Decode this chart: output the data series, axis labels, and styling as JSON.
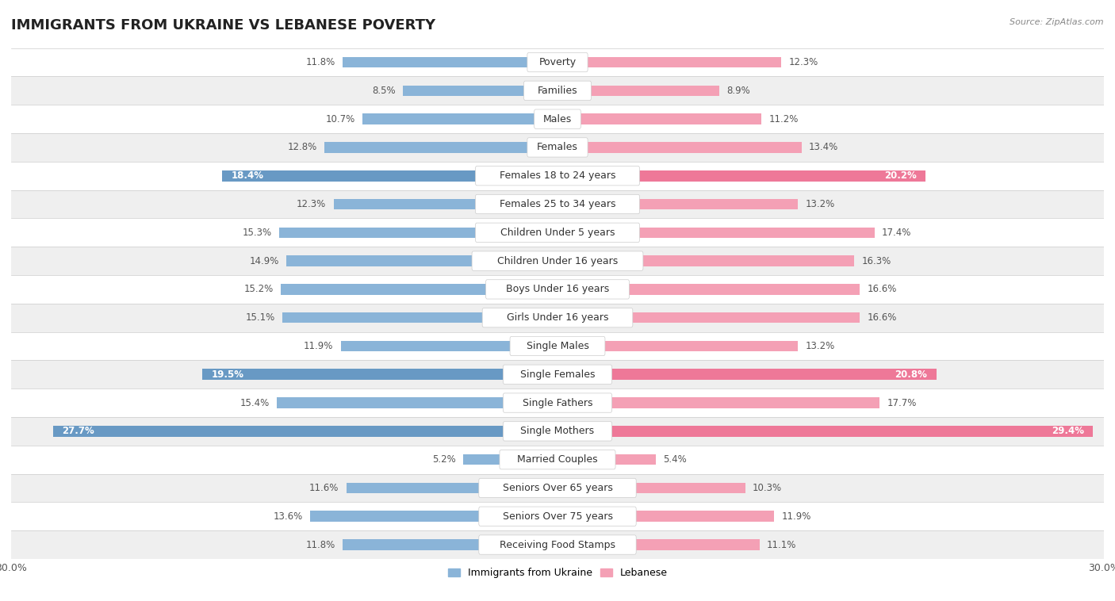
{
  "title": "IMMIGRANTS FROM UKRAINE VS LEBANESE POVERTY",
  "source": "Source: ZipAtlas.com",
  "categories": [
    "Poverty",
    "Families",
    "Males",
    "Females",
    "Females 18 to 24 years",
    "Females 25 to 34 years",
    "Children Under 5 years",
    "Children Under 16 years",
    "Boys Under 16 years",
    "Girls Under 16 years",
    "Single Males",
    "Single Females",
    "Single Fathers",
    "Single Mothers",
    "Married Couples",
    "Seniors Over 65 years",
    "Seniors Over 75 years",
    "Receiving Food Stamps"
  ],
  "ukraine_values": [
    11.8,
    8.5,
    10.7,
    12.8,
    18.4,
    12.3,
    15.3,
    14.9,
    15.2,
    15.1,
    11.9,
    19.5,
    15.4,
    27.7,
    5.2,
    11.6,
    13.6,
    11.8
  ],
  "lebanese_values": [
    12.3,
    8.9,
    11.2,
    13.4,
    20.2,
    13.2,
    17.4,
    16.3,
    16.6,
    16.6,
    13.2,
    20.8,
    17.7,
    29.4,
    5.4,
    10.3,
    11.9,
    11.1
  ],
  "ukraine_color": "#8ab4d8",
  "ukraine_color_highlight": "#6899c4",
  "lebanese_color": "#f4a0b5",
  "lebanese_color_highlight": "#ee7898",
  "highlight_rows": [
    4,
    11,
    13
  ],
  "xlim": 30.0,
  "background_color": "#ffffff",
  "row_bg_even": "#ffffff",
  "row_bg_odd": "#efefef",
  "title_fontsize": 13,
  "label_fontsize": 9,
  "value_fontsize": 8.5
}
